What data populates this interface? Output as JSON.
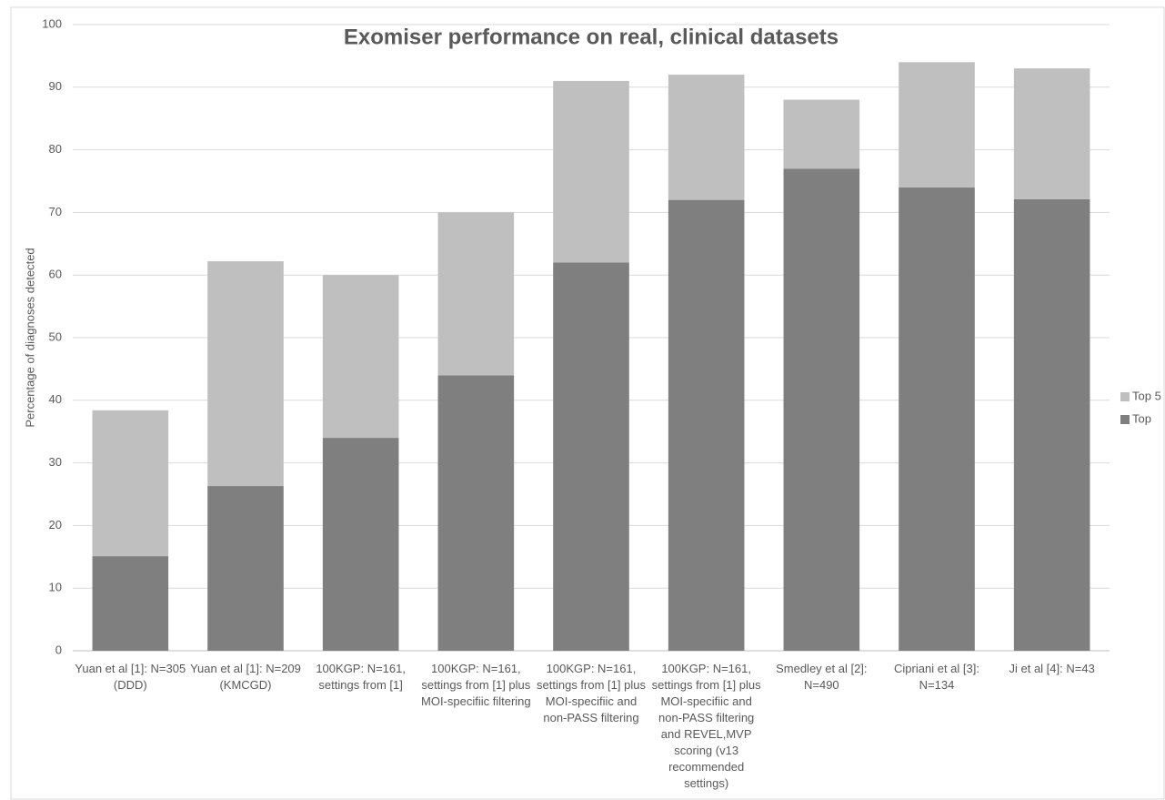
{
  "chart_data": {
    "type": "stacked_bar",
    "title": "Exomiser performance on real, clinical datasets",
    "y_label": "Percentage of diagnoses detected",
    "categories": [
      "Yuan et al [1]: N=305 (DDD)",
      "Yuan et al [1]: N=209 (KMCGD)",
      "100KGP: N=161, settings from [1]",
      "100KGP: N=161, settings from [1] plus MOI-specifiic filtering",
      "100KGP: N=161, settings from [1] plus MOI-specifiic and non-PASS filtering",
      "100KGP: N=161, settings from [1] plus MOI-specifiic and non-PASS filtering and REVEL,MVP scoring (v13 recommended settings)",
      "Smedley et al [2]: N=490",
      "Cipriani et al [3]: N=134",
      "Ji et al [4]: N=43"
    ],
    "series": [
      {
        "name": "Top",
        "color": "#7f7f7f",
        "values": [
          15.1,
          26.3,
          34,
          44,
          62,
          72,
          77,
          74,
          72.1
        ]
      },
      {
        "name": "Top 5",
        "color": "#bfbfbf",
        "values": [
          23.3,
          35.9,
          26,
          26,
          29,
          20,
          11,
          20,
          20.9
        ]
      }
    ],
    "ylim": [
      0,
      100
    ],
    "yticks": [
      0,
      10,
      20,
      30,
      40,
      50,
      60,
      70,
      80,
      90,
      100
    ],
    "grid": true,
    "legend": "right"
  }
}
